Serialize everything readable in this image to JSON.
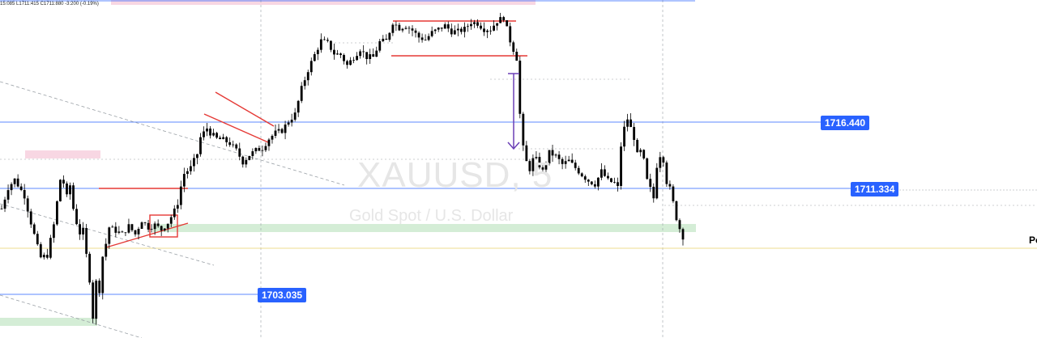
{
  "header": {
    "ohlc_text": "15:085  L1711:415  C1711:880  -3:200 (-0.19%)"
  },
  "watermark": {
    "symbol": "XAUUSD, 5",
    "description": "Gold Spot / U.S. Dollar"
  },
  "price_labels": [
    {
      "value": "1716.440",
      "price": 1716.44
    },
    {
      "value": "1711.334",
      "price": 1711.334
    },
    {
      "value": "1703.035",
      "price": 1703.035
    }
  ],
  "edge_text": "Po",
  "colors": {
    "candle": "#000000",
    "price_tag": "#2962ff",
    "horizontal_line": "#2962ff",
    "trendline": "#e53935",
    "zone_pink": "#f8d7e3",
    "zone_green": "#d4edd6",
    "arrow": "#6a3fb5"
  },
  "chart_data": {
    "type": "candlestick",
    "symbol": "XAUUSD",
    "timeframe": "5",
    "ylim": [
      1700.5,
      1729.5
    ],
    "marked_levels": [
      1716.44,
      1711.334,
      1703.035
    ],
    "close_path": [
      [
        0,
        1711.6
      ],
      [
        2,
        1713.4
      ],
      [
        4,
        1714.1
      ],
      [
        7,
        1712.7
      ],
      [
        9,
        1710.4
      ],
      [
        11,
        1708.3
      ],
      [
        12,
        1707.4
      ],
      [
        14,
        1707.6
      ],
      [
        16,
        1710.2
      ],
      [
        18,
        1714.1
      ],
      [
        19,
        1713.8
      ],
      [
        20,
        1712.6
      ],
      [
        21,
        1713.6
      ],
      [
        22,
        1711.6
      ],
      [
        23,
        1710.4
      ],
      [
        24,
        1709.5
      ],
      [
        25,
        1709.7
      ],
      [
        26,
        1707.6
      ],
      [
        27,
        1705.5
      ],
      [
        28,
        1702.3
      ],
      [
        29,
        1705.3
      ],
      [
        30,
        1704.6
      ],
      [
        31,
        1707.5
      ],
      [
        32,
        1708.6
      ],
      [
        33,
        1710.0
      ],
      [
        35,
        1709.7
      ],
      [
        37,
        1709.4
      ],
      [
        39,
        1710.1
      ],
      [
        41,
        1709.4
      ],
      [
        43,
        1710.6
      ],
      [
        45,
        1710.0
      ],
      [
        47,
        1710.2
      ],
      [
        49,
        1709.8
      ],
      [
        51,
        1710.4
      ],
      [
        53,
        1711.4
      ],
      [
        54,
        1712.1
      ],
      [
        55,
        1713.5
      ],
      [
        56,
        1714.6
      ],
      [
        58,
        1715.1
      ],
      [
        60,
        1716.3
      ],
      [
        61,
        1717.7
      ],
      [
        63,
        1718.5
      ],
      [
        64,
        1718.1
      ],
      [
        66,
        1717.6
      ],
      [
        68,
        1717.5
      ],
      [
        70,
        1717.2
      ],
      [
        72,
        1716.6
      ],
      [
        74,
        1715.6
      ],
      [
        76,
        1716.2
      ],
      [
        78,
        1716.6
      ],
      [
        80,
        1716.8
      ],
      [
        82,
        1717.6
      ],
      [
        84,
        1718.1
      ],
      [
        86,
        1718.3
      ],
      [
        88,
        1719.1
      ],
      [
        90,
        1719.7
      ],
      [
        92,
        1721.9
      ],
      [
        94,
        1723.5
      ],
      [
        96,
        1724.8
      ],
      [
        98,
        1726.0
      ],
      [
        100,
        1725.8
      ],
      [
        102,
        1724.9
      ],
      [
        104,
        1724.8
      ],
      [
        106,
        1723.9
      ],
      [
        108,
        1724.6
      ],
      [
        110,
        1725.3
      ],
      [
        112,
        1724.6
      ],
      [
        114,
        1724.6
      ],
      [
        116,
        1725.9
      ],
      [
        118,
        1726.0
      ],
      [
        120,
        1727.6
      ],
      [
        122,
        1727.1
      ],
      [
        124,
        1727.3
      ],
      [
        126,
        1726.9
      ],
      [
        128,
        1726.3
      ],
      [
        130,
        1726.1
      ],
      [
        132,
        1726.7
      ],
      [
        134,
        1727.0
      ],
      [
        136,
        1727.3
      ],
      [
        138,
        1726.8
      ],
      [
        140,
        1726.8
      ],
      [
        142,
        1727.0
      ],
      [
        144,
        1727.6
      ],
      [
        146,
        1727.5
      ],
      [
        148,
        1727.0
      ],
      [
        150,
        1727.0
      ],
      [
        152,
        1727.7
      ],
      [
        154,
        1728.0
      ],
      [
        156,
        1726.0
      ],
      [
        158,
        1724.5
      ],
      [
        159,
        1719.7
      ],
      [
        160,
        1716.8
      ],
      [
        161,
        1715.6
      ],
      [
        162,
        1715.0
      ],
      [
        163,
        1715.8
      ],
      [
        164,
        1715.8
      ],
      [
        166,
        1714.8
      ],
      [
        168,
        1716.4
      ],
      [
        170,
        1716.1
      ],
      [
        172,
        1715.4
      ],
      [
        174,
        1715.7
      ],
      [
        176,
        1715.1
      ],
      [
        178,
        1714.5
      ],
      [
        180,
        1714.0
      ],
      [
        182,
        1713.7
      ],
      [
        184,
        1714.8
      ],
      [
        186,
        1714.0
      ],
      [
        188,
        1713.8
      ],
      [
        189,
        1713.4
      ],
      [
        190,
        1717.0
      ],
      [
        191,
        1718.5
      ],
      [
        192,
        1719.3
      ],
      [
        193,
        1718.5
      ],
      [
        194,
        1717.7
      ],
      [
        195,
        1716.2
      ],
      [
        196,
        1716.5
      ],
      [
        197,
        1715.7
      ],
      [
        198,
        1714.0
      ],
      [
        199,
        1713.3
      ],
      [
        200,
        1712.5
      ],
      [
        201,
        1715.3
      ],
      [
        202,
        1716.2
      ],
      [
        203,
        1715.8
      ],
      [
        204,
        1713.9
      ],
      [
        205,
        1713.3
      ],
      [
        206,
        1712.1
      ],
      [
        207,
        1710.8
      ],
      [
        208,
        1709.9
      ],
      [
        209,
        1709.2
      ]
    ]
  }
}
